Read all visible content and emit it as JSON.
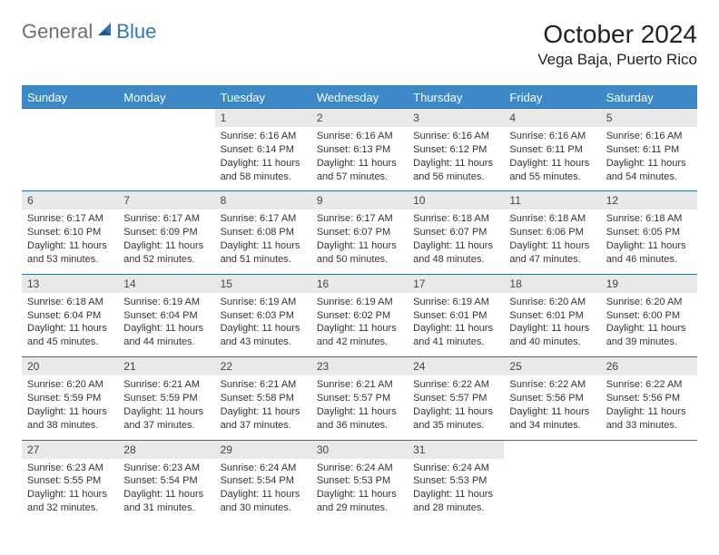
{
  "logo": {
    "general": "General",
    "blue": "Blue"
  },
  "title": "October 2024",
  "location": "Vega Baja, Puerto Rico",
  "colors": {
    "header_bg": "#3d89c8",
    "header_text": "#ffffff",
    "daynum_bg": "#e9e9e9",
    "divider": "#2f6ea6",
    "logo_gray": "#6f6f6f",
    "logo_blue": "#2f78c0"
  },
  "font": {
    "daynum_size": 12,
    "info_size": 11,
    "header_size": 13,
    "title_size": 28,
    "location_size": 17
  },
  "day_headers": [
    "Sunday",
    "Monday",
    "Tuesday",
    "Wednesday",
    "Thursday",
    "Friday",
    "Saturday"
  ],
  "weeks": [
    [
      null,
      null,
      {
        "n": "1",
        "sunrise": "Sunrise: 6:16 AM",
        "sunset": "Sunset: 6:14 PM",
        "daylight": "Daylight: 11 hours and 58 minutes."
      },
      {
        "n": "2",
        "sunrise": "Sunrise: 6:16 AM",
        "sunset": "Sunset: 6:13 PM",
        "daylight": "Daylight: 11 hours and 57 minutes."
      },
      {
        "n": "3",
        "sunrise": "Sunrise: 6:16 AM",
        "sunset": "Sunset: 6:12 PM",
        "daylight": "Daylight: 11 hours and 56 minutes."
      },
      {
        "n": "4",
        "sunrise": "Sunrise: 6:16 AM",
        "sunset": "Sunset: 6:11 PM",
        "daylight": "Daylight: 11 hours and 55 minutes."
      },
      {
        "n": "5",
        "sunrise": "Sunrise: 6:16 AM",
        "sunset": "Sunset: 6:11 PM",
        "daylight": "Daylight: 11 hours and 54 minutes."
      }
    ],
    [
      {
        "n": "6",
        "sunrise": "Sunrise: 6:17 AM",
        "sunset": "Sunset: 6:10 PM",
        "daylight": "Daylight: 11 hours and 53 minutes."
      },
      {
        "n": "7",
        "sunrise": "Sunrise: 6:17 AM",
        "sunset": "Sunset: 6:09 PM",
        "daylight": "Daylight: 11 hours and 52 minutes."
      },
      {
        "n": "8",
        "sunrise": "Sunrise: 6:17 AM",
        "sunset": "Sunset: 6:08 PM",
        "daylight": "Daylight: 11 hours and 51 minutes."
      },
      {
        "n": "9",
        "sunrise": "Sunrise: 6:17 AM",
        "sunset": "Sunset: 6:07 PM",
        "daylight": "Daylight: 11 hours and 50 minutes."
      },
      {
        "n": "10",
        "sunrise": "Sunrise: 6:18 AM",
        "sunset": "Sunset: 6:07 PM",
        "daylight": "Daylight: 11 hours and 48 minutes."
      },
      {
        "n": "11",
        "sunrise": "Sunrise: 6:18 AM",
        "sunset": "Sunset: 6:06 PM",
        "daylight": "Daylight: 11 hours and 47 minutes."
      },
      {
        "n": "12",
        "sunrise": "Sunrise: 6:18 AM",
        "sunset": "Sunset: 6:05 PM",
        "daylight": "Daylight: 11 hours and 46 minutes."
      }
    ],
    [
      {
        "n": "13",
        "sunrise": "Sunrise: 6:18 AM",
        "sunset": "Sunset: 6:04 PM",
        "daylight": "Daylight: 11 hours and 45 minutes."
      },
      {
        "n": "14",
        "sunrise": "Sunrise: 6:19 AM",
        "sunset": "Sunset: 6:04 PM",
        "daylight": "Daylight: 11 hours and 44 minutes."
      },
      {
        "n": "15",
        "sunrise": "Sunrise: 6:19 AM",
        "sunset": "Sunset: 6:03 PM",
        "daylight": "Daylight: 11 hours and 43 minutes."
      },
      {
        "n": "16",
        "sunrise": "Sunrise: 6:19 AM",
        "sunset": "Sunset: 6:02 PM",
        "daylight": "Daylight: 11 hours and 42 minutes."
      },
      {
        "n": "17",
        "sunrise": "Sunrise: 6:19 AM",
        "sunset": "Sunset: 6:01 PM",
        "daylight": "Daylight: 11 hours and 41 minutes."
      },
      {
        "n": "18",
        "sunrise": "Sunrise: 6:20 AM",
        "sunset": "Sunset: 6:01 PM",
        "daylight": "Daylight: 11 hours and 40 minutes."
      },
      {
        "n": "19",
        "sunrise": "Sunrise: 6:20 AM",
        "sunset": "Sunset: 6:00 PM",
        "daylight": "Daylight: 11 hours and 39 minutes."
      }
    ],
    [
      {
        "n": "20",
        "sunrise": "Sunrise: 6:20 AM",
        "sunset": "Sunset: 5:59 PM",
        "daylight": "Daylight: 11 hours and 38 minutes."
      },
      {
        "n": "21",
        "sunrise": "Sunrise: 6:21 AM",
        "sunset": "Sunset: 5:59 PM",
        "daylight": "Daylight: 11 hours and 37 minutes."
      },
      {
        "n": "22",
        "sunrise": "Sunrise: 6:21 AM",
        "sunset": "Sunset: 5:58 PM",
        "daylight": "Daylight: 11 hours and 37 minutes."
      },
      {
        "n": "23",
        "sunrise": "Sunrise: 6:21 AM",
        "sunset": "Sunset: 5:57 PM",
        "daylight": "Daylight: 11 hours and 36 minutes."
      },
      {
        "n": "24",
        "sunrise": "Sunrise: 6:22 AM",
        "sunset": "Sunset: 5:57 PM",
        "daylight": "Daylight: 11 hours and 35 minutes."
      },
      {
        "n": "25",
        "sunrise": "Sunrise: 6:22 AM",
        "sunset": "Sunset: 5:56 PM",
        "daylight": "Daylight: 11 hours and 34 minutes."
      },
      {
        "n": "26",
        "sunrise": "Sunrise: 6:22 AM",
        "sunset": "Sunset: 5:56 PM",
        "daylight": "Daylight: 11 hours and 33 minutes."
      }
    ],
    [
      {
        "n": "27",
        "sunrise": "Sunrise: 6:23 AM",
        "sunset": "Sunset: 5:55 PM",
        "daylight": "Daylight: 11 hours and 32 minutes."
      },
      {
        "n": "28",
        "sunrise": "Sunrise: 6:23 AM",
        "sunset": "Sunset: 5:54 PM",
        "daylight": "Daylight: 11 hours and 31 minutes."
      },
      {
        "n": "29",
        "sunrise": "Sunrise: 6:24 AM",
        "sunset": "Sunset: 5:54 PM",
        "daylight": "Daylight: 11 hours and 30 minutes."
      },
      {
        "n": "30",
        "sunrise": "Sunrise: 6:24 AM",
        "sunset": "Sunset: 5:53 PM",
        "daylight": "Daylight: 11 hours and 29 minutes."
      },
      {
        "n": "31",
        "sunrise": "Sunrise: 6:24 AM",
        "sunset": "Sunset: 5:53 PM",
        "daylight": "Daylight: 11 hours and 28 minutes."
      },
      null,
      null
    ]
  ]
}
